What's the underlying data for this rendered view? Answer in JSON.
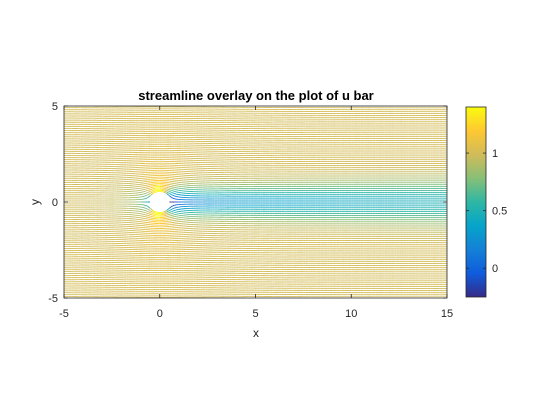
{
  "chart_data": {
    "type": "streamline",
    "title": "streamline overlay on the plot of u bar",
    "xlabel": "x",
    "ylabel": "y",
    "xlim": [
      -5,
      15
    ],
    "ylim": [
      -5,
      5
    ],
    "xticks": [
      "-5",
      "0",
      "5",
      "10",
      "15"
    ],
    "yticks": [
      "-5",
      "0",
      "5"
    ],
    "cylinder": {
      "center": [
        0,
        0
      ],
      "radius": 0.5
    },
    "streamline_spacing": 0.1,
    "colorbar": {
      "colormap": "parula",
      "range": [
        -0.25,
        1.4
      ],
      "ticks": [
        "0",
        "0.5",
        "1"
      ],
      "colors": [
        "#352a87",
        "#0f5cdd",
        "#1481d6",
        "#06a4ca",
        "#2eb7a4",
        "#87bf77",
        "#d1bb59",
        "#fec832",
        "#f9fb0e"
      ]
    },
    "grid": false
  }
}
